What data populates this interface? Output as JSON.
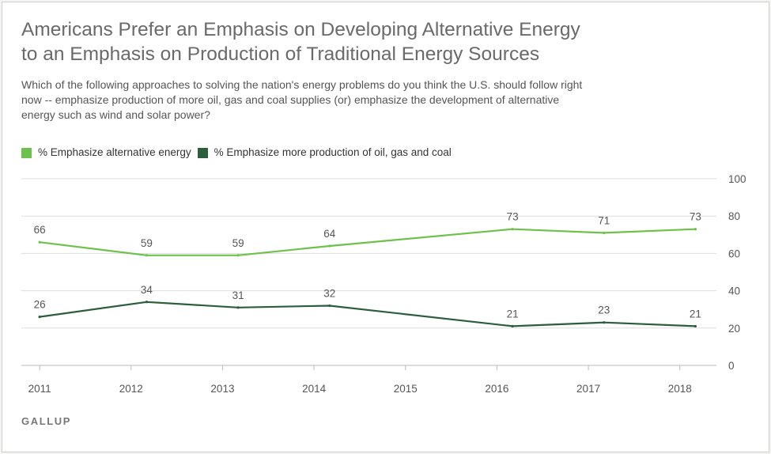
{
  "title_line1": "Americans Prefer an Emphasis on Developing Alternative Energy",
  "title_line2": "to an Emphasis on Production of Traditional Energy Sources",
  "subtitle": "Which of the following approaches to solving the nation's energy problems do you think the U.S. should follow right now -- emphasize production of more oil, gas and coal supplies (or) emphasize the development of alternative energy such as wind and solar power?",
  "brand": "GALLUP",
  "colors": {
    "alternative": "#6cc24a",
    "traditional": "#2d5e3c",
    "grid": "#dddddd",
    "axis": "#bbbbbb",
    "text": "#555555"
  },
  "chart_data": {
    "type": "line",
    "x": [
      2011.0,
      2012.17,
      2013.17,
      2014.17,
      2016.17,
      2017.17,
      2018.17
    ],
    "xticks": [
      "2011",
      "2012",
      "2013",
      "2014",
      "2015",
      "2016",
      "2017",
      "2018"
    ],
    "xtick_values": [
      2011,
      2012,
      2013,
      2014,
      2015,
      2016,
      2017,
      2018
    ],
    "yticks": [
      "0",
      "20",
      "40",
      "60",
      "80",
      "100"
    ],
    "ytick_values": [
      0,
      20,
      40,
      60,
      80,
      100
    ],
    "xlim": [
      2010.8,
      2018.4
    ],
    "ylim": [
      0,
      100
    ],
    "grid": true,
    "y_axis_side": "right",
    "legend_position": "top-left",
    "series": [
      {
        "name": "% Emphasize alternative energy",
        "color": "#6cc24a",
        "values": [
          66,
          59,
          59,
          64,
          73,
          71,
          73
        ],
        "labels": [
          "66",
          "59",
          "59",
          "64",
          "73",
          "71",
          "73"
        ]
      },
      {
        "name": "% Emphasize more production of oil, gas and coal",
        "color": "#2d5e3c",
        "values": [
          26,
          34,
          31,
          32,
          21,
          23,
          21
        ],
        "labels": [
          "26",
          "34",
          "31",
          "32",
          "21",
          "23",
          "21"
        ]
      }
    ]
  }
}
